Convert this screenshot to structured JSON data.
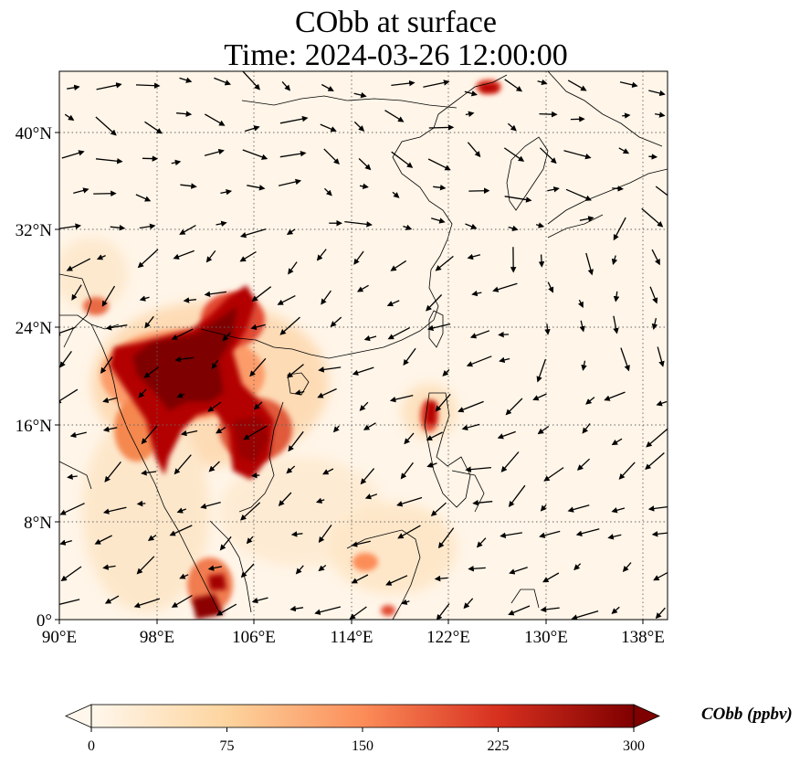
{
  "title": {
    "line1": "CObb at surface",
    "line2": "Time: 2024-03-26 12:00:00"
  },
  "map": {
    "projection": "lon-lat (PlateCarree)",
    "lon_range": [
      90,
      140
    ],
    "lat_range": [
      0,
      45
    ],
    "gridlines": true,
    "gridline_style": "dotted",
    "lon_ticks": [
      {
        "value": 90,
        "label": "90°E"
      },
      {
        "value": 98,
        "label": "98°E"
      },
      {
        "value": 106,
        "label": "106°E"
      },
      {
        "value": 114,
        "label": "114°E"
      },
      {
        "value": 122,
        "label": "122°E"
      },
      {
        "value": 130,
        "label": "130°E"
      },
      {
        "value": 138,
        "label": "138°E"
      }
    ],
    "lat_ticks": [
      {
        "value": 0,
        "label": "0°"
      },
      {
        "value": 8,
        "label": "8°N"
      },
      {
        "value": 16,
        "label": "16°N"
      },
      {
        "value": 24,
        "label": "24°N"
      },
      {
        "value": 32,
        "label": "32°N"
      },
      {
        "value": 40,
        "label": "40°N"
      }
    ],
    "overlays": [
      "coastlines",
      "country borders",
      "wind vectors"
    ]
  },
  "colorbar": {
    "label": "CObb (ppbv)",
    "colormap": "OrRd",
    "range": [
      0,
      300
    ],
    "extend": "both",
    "ticks": [
      {
        "value": 0,
        "label": "0"
      },
      {
        "value": 75,
        "label": "75"
      },
      {
        "value": 150,
        "label": "150"
      },
      {
        "value": 225,
        "label": "225"
      },
      {
        "value": 300,
        "label": "300"
      }
    ],
    "colors": [
      "#fff7ec",
      "#fdd49e",
      "#fc8d59",
      "#d7301f",
      "#7f0000"
    ]
  },
  "colors": {
    "background_low": "#fff6ea",
    "high": "#7f0000",
    "mid": "#d7301f"
  }
}
